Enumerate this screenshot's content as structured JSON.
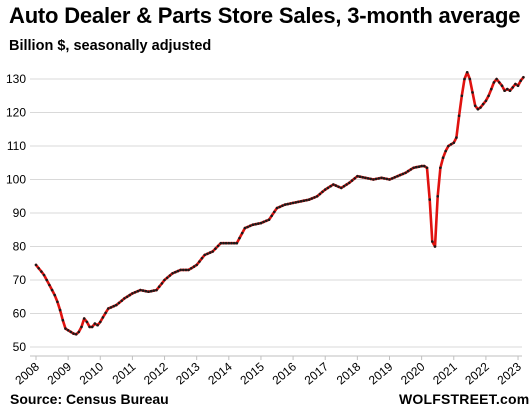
{
  "header": {
    "title": "Auto Dealer & Parts Store Sales, 3-month average",
    "subtitle": "Billion $, seasonally adjusted"
  },
  "footer": {
    "source": "Source: Census Bureau",
    "brand": "WOLFSTREET.com"
  },
  "colors": {
    "line": "#e0120f",
    "marker": "#1a1a1a",
    "grid": "#d9d9d9"
  },
  "chart_data": {
    "type": "line",
    "title": "Auto Dealer & Parts Store Sales, 3-month average",
    "ylabel": "Billion $, seasonally adjusted",
    "ylim": [
      50,
      135
    ],
    "yticks": [
      50,
      60,
      70,
      80,
      90,
      100,
      110,
      120,
      130
    ],
    "xticks": [
      "2008",
      "2009",
      "2010",
      "2011",
      "2012",
      "2013",
      "2014",
      "2015",
      "2016",
      "2017",
      "2018",
      "2019",
      "2020",
      "2021",
      "2022",
      "2023"
    ],
    "grid": "horizontal",
    "series": [
      {
        "x": [
          "2008-01",
          "2008-02",
          "2008-03",
          "2008-04",
          "2008-05",
          "2008-06",
          "2008-07",
          "2008-08",
          "2008-09",
          "2008-10",
          "2008-11",
          "2008-12",
          "2009-01",
          "2009-02",
          "2009-03",
          "2009-04",
          "2009-05",
          "2009-06",
          "2009-07",
          "2009-08",
          "2009-09",
          "2009-10",
          "2009-11",
          "2009-12",
          "2010-01",
          "2010-04",
          "2010-07",
          "2010-10",
          "2011-01",
          "2011-04",
          "2011-07",
          "2011-10",
          "2012-01",
          "2012-04",
          "2012-07",
          "2012-10",
          "2013-01",
          "2013-04",
          "2013-07",
          "2013-10",
          "2014-01",
          "2014-04",
          "2014-07",
          "2014-10",
          "2015-01",
          "2015-04",
          "2015-07",
          "2015-10",
          "2016-01",
          "2016-04",
          "2016-07",
          "2016-10",
          "2017-01",
          "2017-04",
          "2017-07",
          "2017-10",
          "2018-01",
          "2018-04",
          "2018-07",
          "2018-10",
          "2019-01",
          "2019-04",
          "2019-07",
          "2019-10",
          "2020-01",
          "2020-02",
          "2020-03",
          "2020-04",
          "2020-05",
          "2020-06",
          "2020-07",
          "2020-08",
          "2020-09",
          "2020-10",
          "2020-11",
          "2020-12",
          "2021-01",
          "2021-02",
          "2021-03",
          "2021-04",
          "2021-05",
          "2021-06",
          "2021-07",
          "2021-08",
          "2021-09",
          "2021-10",
          "2021-11",
          "2021-12",
          "2022-01",
          "2022-02",
          "2022-03",
          "2022-04",
          "2022-05",
          "2022-06",
          "2022-07",
          "2022-08",
          "2022-09",
          "2022-10",
          "2022-11",
          "2022-12",
          "2023-01",
          "2023-02",
          "2023-03"
        ],
        "values": [
          74.5,
          73.5,
          72.5,
          71.5,
          70,
          68.5,
          67,
          65.5,
          63.5,
          61,
          58,
          55.5,
          55,
          54.5,
          54,
          53.8,
          54.5,
          56,
          58.5,
          57.5,
          56,
          56,
          57,
          56.5,
          57.5,
          61.5,
          62.5,
          64.5,
          66,
          67,
          66.5,
          67,
          70,
          72,
          73,
          73,
          74.5,
          77.5,
          78.5,
          81,
          81,
          81,
          85.5,
          86.5,
          87,
          88,
          91.5,
          92.5,
          93,
          93.5,
          94,
          95,
          97,
          98.5,
          97.5,
          99,
          101,
          100.5,
          100,
          100.5,
          100,
          101,
          102,
          103.5,
          104,
          104,
          103.5,
          94,
          81.5,
          80,
          95,
          103.5,
          106.5,
          108.5,
          110,
          110.5,
          111,
          112.5,
          119,
          125,
          130,
          132,
          130,
          126,
          122,
          121,
          121.5,
          122.5,
          123.5,
          125,
          127,
          129,
          130,
          129,
          128,
          126.5,
          127,
          126.5,
          127.5,
          128.5,
          128,
          129.5,
          130.5
        ]
      }
    ]
  }
}
